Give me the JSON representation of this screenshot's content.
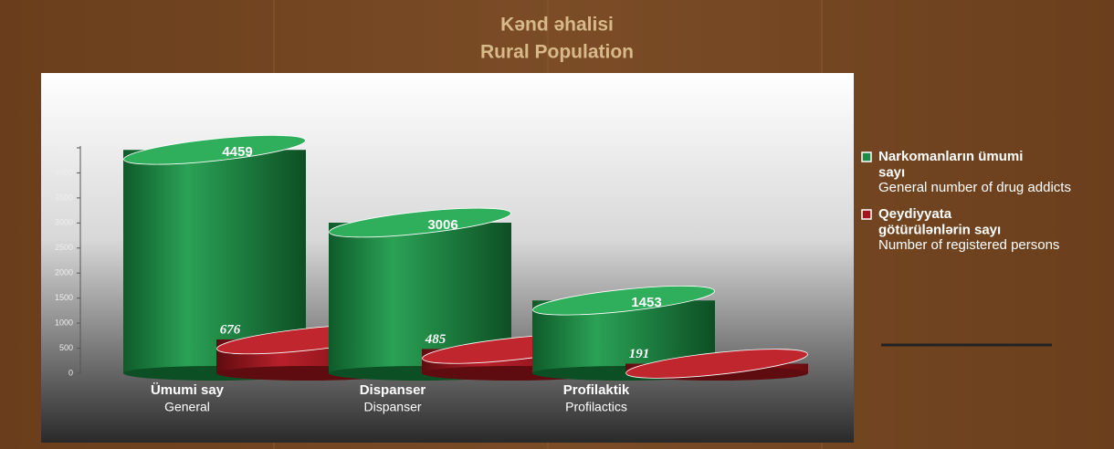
{
  "chart_data": {
    "type": "bar",
    "title": "Kənd əhalisi",
    "subtitle": "Rural Population",
    "categories": [
      "Ümumi say",
      "Dispanser",
      "Profilaktik"
    ],
    "categories_en": [
      "General",
      "Dispanser",
      "Profilactics"
    ],
    "series": [
      {
        "name": "Narkomanların ümumi sayı",
        "name_en": "General number of drug addicts",
        "color": "#1f8a45",
        "values": [
          4459,
          3006,
          1453
        ]
      },
      {
        "name": "Qeydiyyata götürülənlərin sayı",
        "name_en": "Number of registered persons",
        "color": "#a0161b",
        "values": [
          676,
          485,
          191
        ]
      }
    ],
    "ylim": [
      0,
      4500
    ],
    "yticks": [
      0,
      500,
      1000,
      1500,
      2000,
      2500,
      3000,
      3500,
      4000,
      4500
    ]
  }
}
